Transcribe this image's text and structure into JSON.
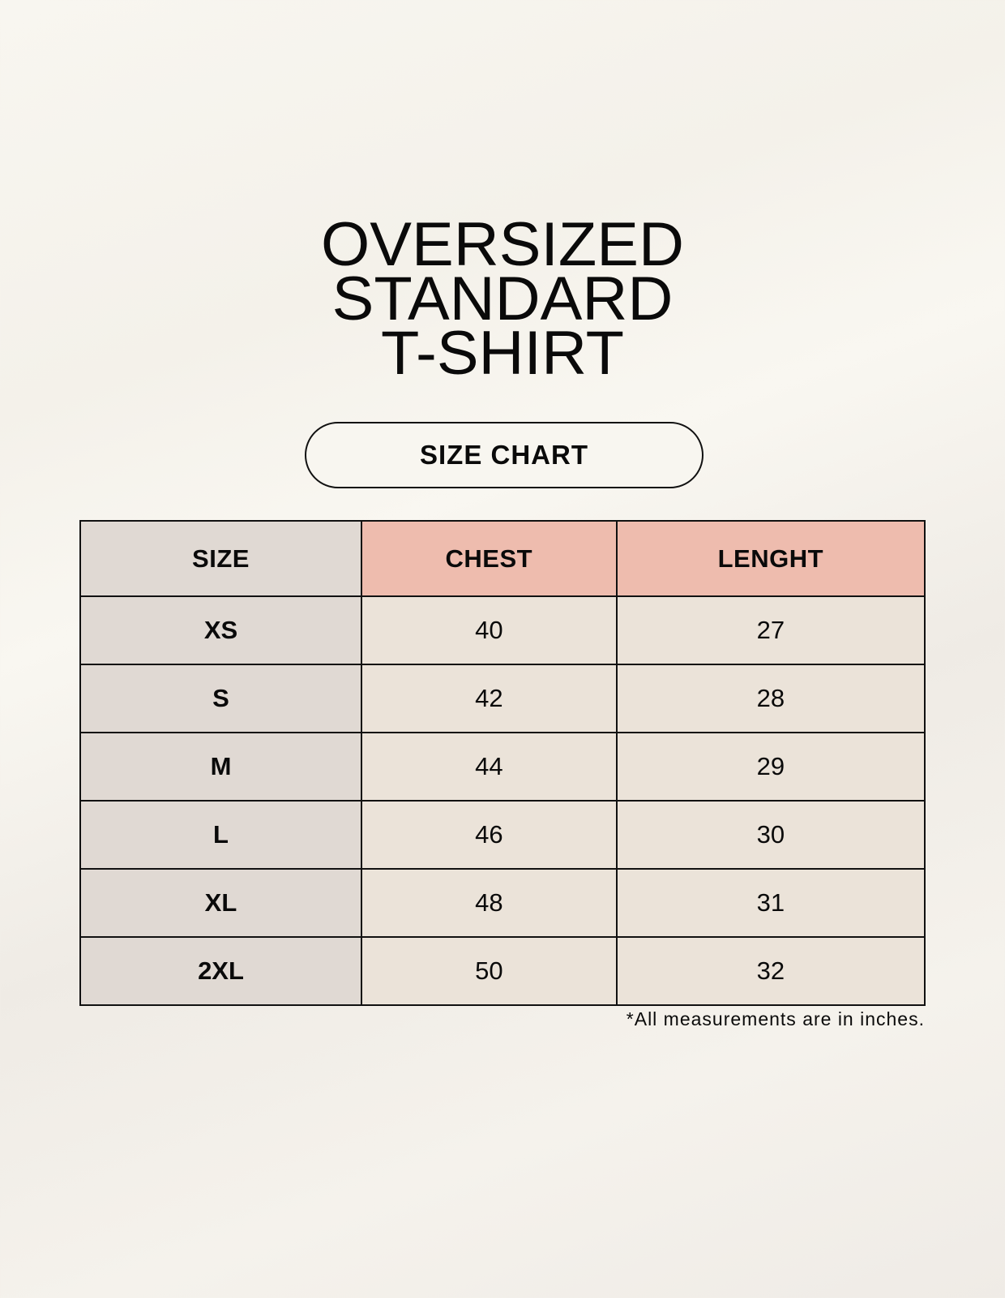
{
  "title": {
    "lines": [
      "OVERSIZED",
      "STANDARD",
      "T-SHIRT"
    ]
  },
  "badge": "SIZE CHART",
  "table": {
    "headers": [
      "SIZE",
      "CHEST",
      "LENGHT"
    ],
    "rows": [
      [
        "XS",
        "40",
        "27"
      ],
      [
        "S",
        "42",
        "28"
      ],
      [
        "M",
        "44",
        "29"
      ],
      [
        "L",
        "46",
        "30"
      ],
      [
        "XL",
        "48",
        "31"
      ],
      [
        "2XL",
        "50",
        "32"
      ]
    ]
  },
  "footnote": "*All measurements are in inches.",
  "colors": {
    "size_column": "#e0d9d3",
    "header_accent": "#eebcae",
    "value_cells": "#ebe3d9"
  }
}
